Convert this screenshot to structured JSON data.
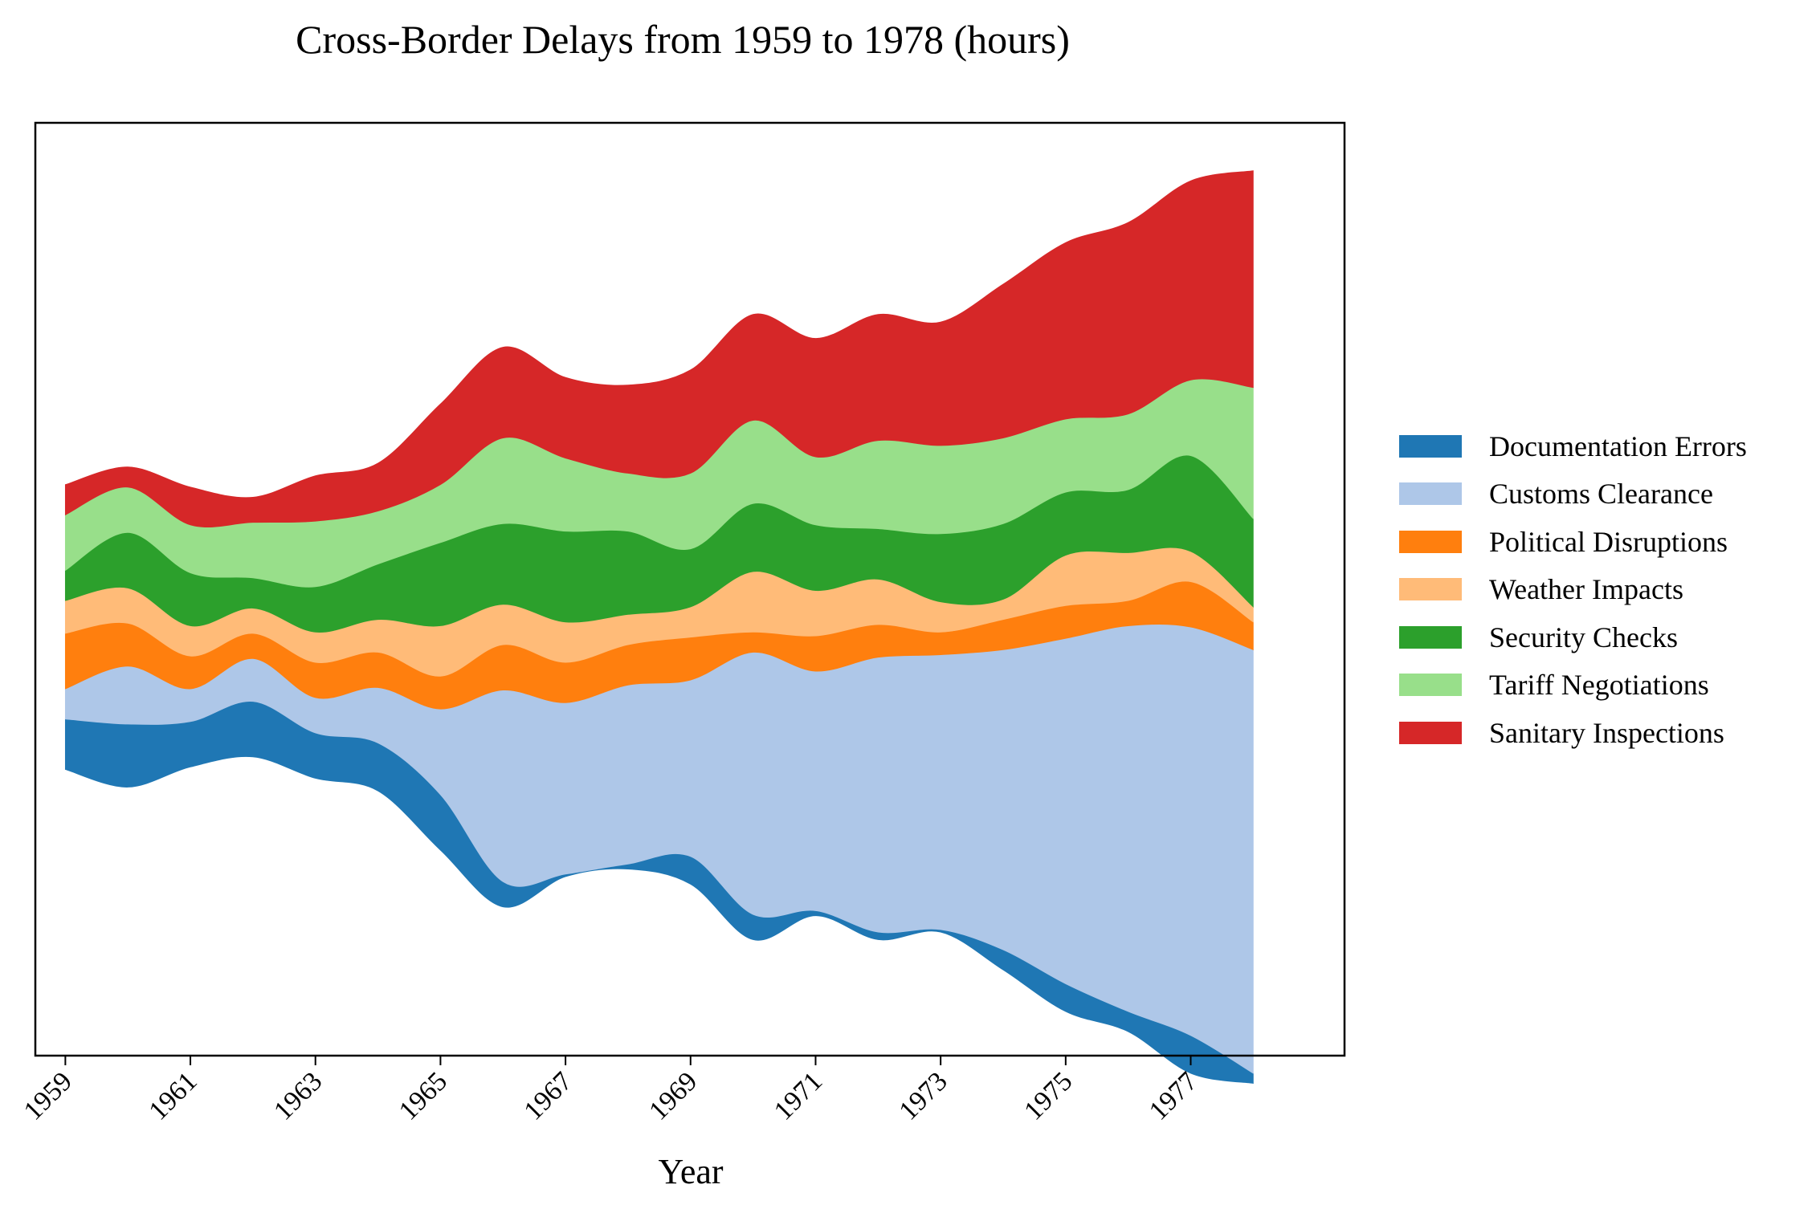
{
  "chart_data": {
    "type": "area",
    "subtype": "streamgraph",
    "title": "Cross-Border Delays from 1959 to 1978 (hours)",
    "xlabel": "Year",
    "ylabel": "",
    "x": [
      1959,
      1960,
      1961,
      1962,
      1963,
      1964,
      1965,
      1966,
      1967,
      1968,
      1969,
      1970,
      1971,
      1972,
      1973,
      1974,
      1975,
      1976,
      1977,
      1978
    ],
    "x_tick_labels": [
      "1959",
      "1961",
      "1963",
      "1965",
      "1967",
      "1969",
      "1971",
      "1973",
      "1975",
      "1977"
    ],
    "series": [
      {
        "name": "Documentation Errors",
        "color": "#1f77b4",
        "values": [
          2.0,
          2.5,
          1.8,
          2.2,
          1.8,
          1.9,
          2.2,
          1.0,
          0.1,
          0.2,
          1.1,
          1.0,
          0.2,
          0.3,
          0.1,
          0.8,
          1.1,
          0.8,
          1.5,
          0.4
        ]
      },
      {
        "name": "Customs Clearance",
        "color": "#aec7e8",
        "values": [
          1.2,
          2.3,
          1.3,
          1.7,
          1.4,
          2.2,
          3.4,
          7.6,
          6.8,
          7.1,
          7.0,
          10.4,
          9.5,
          10.9,
          10.9,
          11.9,
          13.7,
          15.3,
          16.2,
          16.8
        ]
      },
      {
        "name": "Political Disruptions",
        "color": "#ff7f0e",
        "values": [
          2.2,
          1.7,
          1.3,
          1.0,
          1.4,
          1.4,
          1.3,
          1.8,
          1.6,
          1.6,
          1.7,
          0.8,
          1.4,
          1.3,
          0.9,
          1.2,
          1.3,
          1.0,
          1.8,
          1.1
        ]
      },
      {
        "name": "Weather Impacts",
        "color": "#ffbb78",
        "values": [
          1.3,
          1.4,
          1.2,
          1.0,
          1.2,
          1.3,
          2.0,
          1.6,
          1.6,
          1.2,
          1.2,
          2.4,
          1.8,
          1.8,
          1.2,
          0.8,
          2.0,
          1.9,
          1.2,
          0.6
        ]
      },
      {
        "name": "Security Checks",
        "color": "#2ca02c",
        "values": [
          1.2,
          2.2,
          2.1,
          1.2,
          1.8,
          2.2,
          3.3,
          3.2,
          3.6,
          3.3,
          2.3,
          2.7,
          2.6,
          2.0,
          2.7,
          3.0,
          2.5,
          2.5,
          3.8,
          3.5
        ]
      },
      {
        "name": "Tariff Negotiations",
        "color": "#98df8a",
        "values": [
          2.2,
          1.8,
          1.9,
          2.2,
          2.6,
          2.1,
          2.3,
          3.4,
          2.9,
          2.3,
          3.0,
          3.3,
          2.7,
          3.5,
          3.5,
          3.4,
          2.9,
          3.0,
          3.0,
          5.2
        ]
      },
      {
        "name": "Sanitary Inspections",
        "color": "#d62728",
        "values": [
          1.2,
          0.8,
          1.5,
          1.0,
          1.8,
          1.9,
          3.2,
          3.6,
          3.2,
          3.5,
          4.1,
          4.2,
          4.7,
          5.0,
          4.9,
          6.1,
          7.0,
          7.6,
          7.9,
          8.6
        ]
      }
    ],
    "baseline": "symmetric",
    "ylim": [
      -17,
      20
    ],
    "grid": false,
    "legend": "right"
  }
}
